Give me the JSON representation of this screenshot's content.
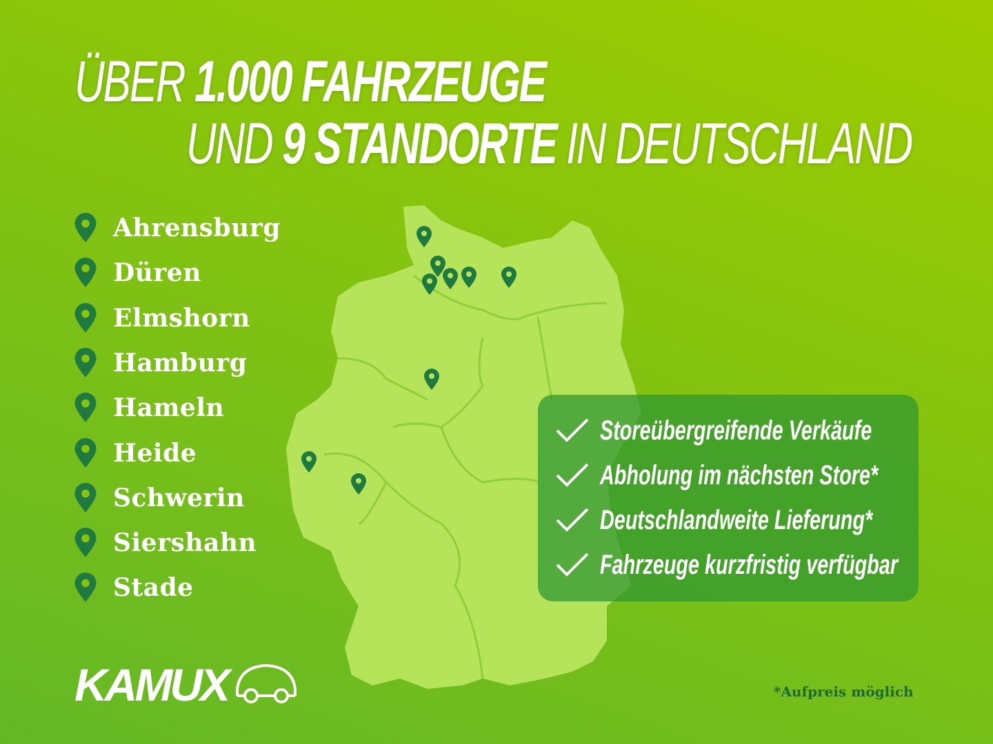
{
  "headline": {
    "line1_a": "ÜBER",
    "line1_b": "1.000 FAHRZEUGE",
    "line2_a": "UND",
    "line2_b": "9 STANDORTE",
    "line2_c": "IN DEUTSCHLAND"
  },
  "locations": [
    "Ahrensburg",
    "Düren",
    "Elmshorn",
    "Hamburg",
    "Hameln",
    "Heide",
    "Schwerin",
    "Siershahn",
    "Stade"
  ],
  "features": [
    "Storeübergreifende Verkäufe",
    "Abholung im nächsten Store*",
    "Deutschlandweite Lieferung*",
    "Fahrzeuge kurzfristig verfügbar"
  ],
  "footnote": "*Aufpreis möglich",
  "logo": "KAMUX",
  "colors": {
    "background": "#86c40e",
    "map": "#b5e35a",
    "pin": "#1e7a3e",
    "box": "#2e9632"
  }
}
